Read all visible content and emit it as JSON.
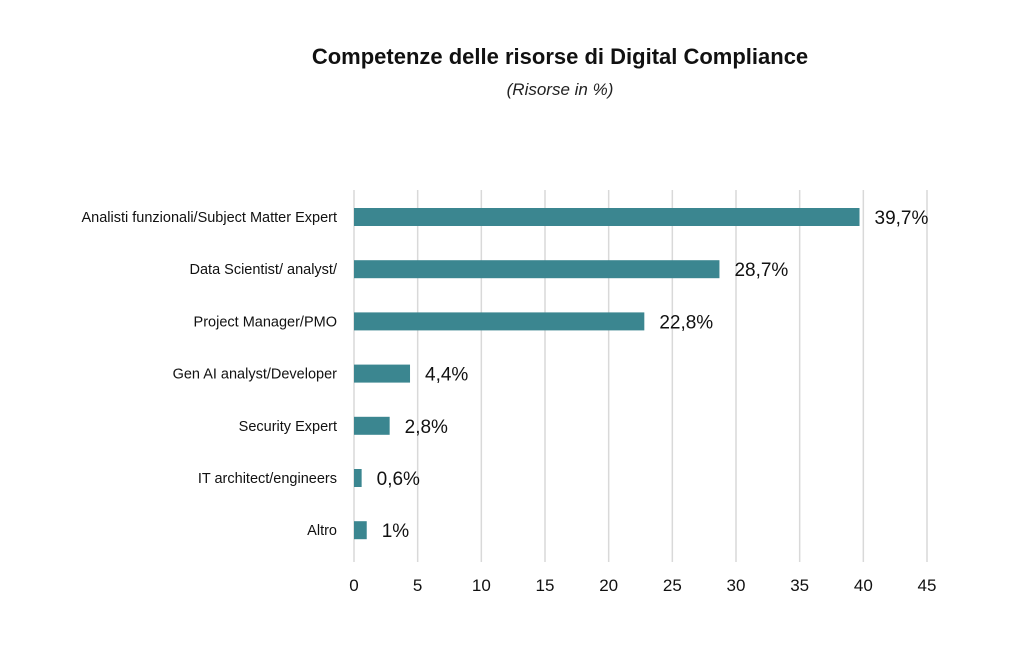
{
  "chart_data": {
    "type": "bar",
    "orientation": "horizontal",
    "title": "Competenze delle risorse di Digital Compliance",
    "subtitle": "(Risorse in %)",
    "categories": [
      "Analisti funzionali/Subject Matter Expert",
      "Data Scientist/ analyst/",
      "Project Manager/PMO",
      "Gen AI analyst/Developer",
      "Security Expert",
      "IT architect/engineers",
      "Altro"
    ],
    "values": [
      39.7,
      28.7,
      22.8,
      4.4,
      2.8,
      0.6,
      1
    ],
    "value_labels": [
      "39,7%",
      "28,7%",
      "22,8%",
      "4,4%",
      "2,8%",
      "0,6%",
      "1%"
    ],
    "xlim": [
      0,
      45
    ],
    "xticks": [
      "0",
      "5",
      "10",
      "15",
      "20",
      "25",
      "30",
      "35",
      "40",
      "45"
    ],
    "xtick_values": [
      0,
      5,
      10,
      15,
      20,
      25,
      30,
      35,
      40,
      45
    ],
    "bar_color": "#3b8690",
    "grid": "vertical",
    "legend": "none"
  }
}
